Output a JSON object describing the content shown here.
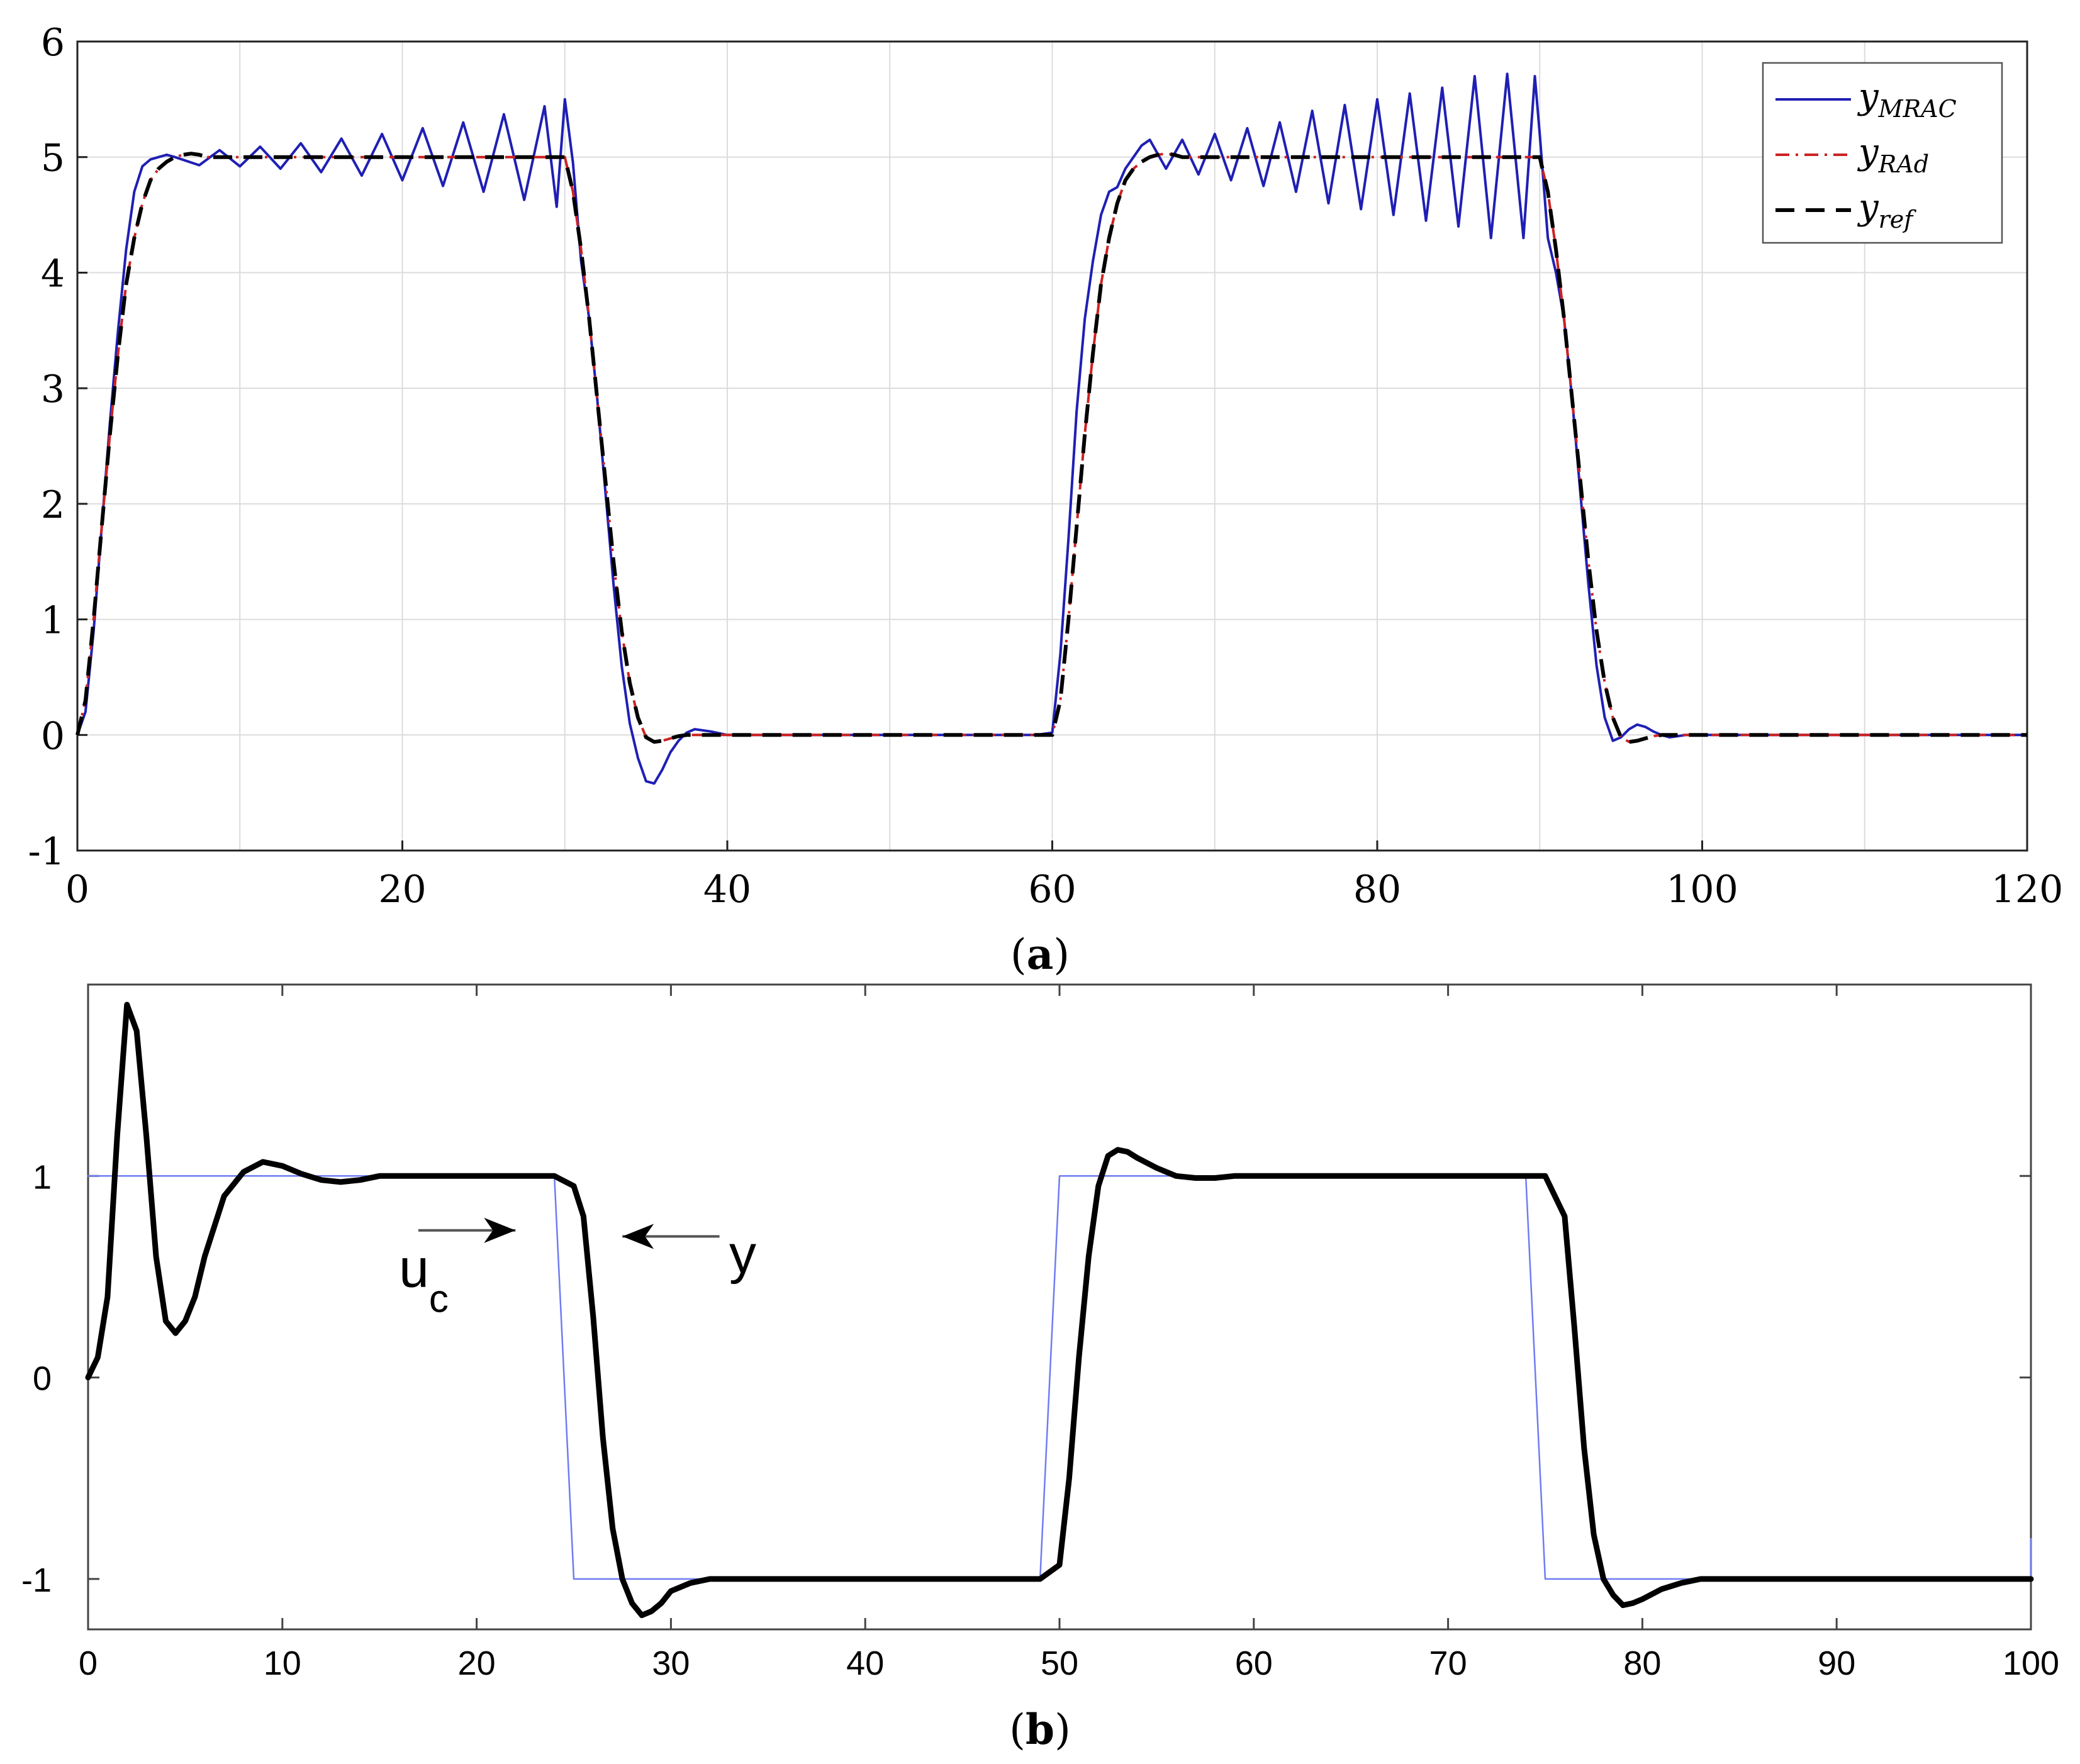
{
  "captions": {
    "a_open": "(",
    "a_letter": "a",
    "a_close": ")",
    "b_open": "(",
    "b_letter": "b",
    "b_close": ")"
  },
  "colors": {
    "mrac": "#1f1fb4",
    "rad": "#cc2222",
    "ref": "#000000",
    "uc": "#6f7cf2",
    "y": "#000000",
    "grid": "#dcdcdc"
  },
  "chart_data": [
    {
      "id": "a",
      "type": "line",
      "xlim": [
        0,
        120
      ],
      "ylim": [
        -1,
        6
      ],
      "x_ticks": [
        "0",
        "20",
        "40",
        "60",
        "80",
        "100",
        "120"
      ],
      "y_ticks": [
        "-1",
        "0",
        "1",
        "2",
        "3",
        "4",
        "5",
        "6"
      ],
      "grid": true,
      "legend_position": "top-right",
      "legend": [
        {
          "base": "y",
          "sub": "MRAC",
          "style": "solid"
        },
        {
          "base": "y",
          "sub": "RAd",
          "style": "dash-dot"
        },
        {
          "base": "y",
          "sub": "ref",
          "style": "dashed"
        }
      ],
      "series": [
        {
          "name": "yMRAC",
          "style": "solid",
          "x": [
            0,
            0.5,
            1,
            1.5,
            2,
            2.5,
            3,
            3.5,
            4,
            4.5,
            5,
            5.5,
            6,
            7.5,
            8.75,
            10,
            11.25,
            12.5,
            13.75,
            15,
            16.25,
            17.5,
            18.75,
            20,
            21.25,
            22.5,
            23.75,
            25,
            26.25,
            27.5,
            28.75,
            29.5,
            30,
            30.5,
            31,
            31.5,
            32,
            32.5,
            33,
            33.5,
            34,
            34.5,
            35,
            35.5,
            36,
            36.5,
            37,
            37.5,
            38,
            39,
            40,
            50,
            59,
            60,
            60.5,
            61,
            61.5,
            62,
            62.5,
            63,
            63.5,
            64,
            64.5,
            65,
            65.5,
            66,
            67,
            68,
            69,
            70,
            71,
            72,
            73,
            74,
            75,
            76,
            77,
            78,
            79,
            80,
            81,
            82,
            83,
            84,
            85,
            86,
            87,
            88,
            89,
            89.7,
            90,
            90.5,
            91,
            91.5,
            92,
            92.5,
            93,
            93.5,
            94,
            94.5,
            95,
            95.5,
            96,
            96.5,
            97,
            97.5,
            98,
            99,
            100,
            110,
            120
          ],
          "y": [
            0,
            0.2,
            0.9,
            1.8,
            2.7,
            3.5,
            4.2,
            4.7,
            4.92,
            4.98,
            5.0,
            5.02,
            5.0,
            4.93,
            5.06,
            4.92,
            5.09,
            4.9,
            5.12,
            4.87,
            5.16,
            4.84,
            5.2,
            4.8,
            5.25,
            4.75,
            5.3,
            4.7,
            5.37,
            4.63,
            5.44,
            4.57,
            5.5,
            4.95,
            4.1,
            3.6,
            2.9,
            2.1,
            1.3,
            0.6,
            0.1,
            -0.2,
            -0.4,
            -0.42,
            -0.3,
            -0.15,
            -0.05,
            0.02,
            0.05,
            0.03,
            0,
            0,
            0,
            0.02,
            0.7,
            1.7,
            2.8,
            3.6,
            4.1,
            4.5,
            4.7,
            4.74,
            4.9,
            5.0,
            5.1,
            5.15,
            4.9,
            5.15,
            4.85,
            5.2,
            4.8,
            5.25,
            4.75,
            5.3,
            4.7,
            5.4,
            4.6,
            5.45,
            4.55,
            5.5,
            4.5,
            5.55,
            4.45,
            5.6,
            4.4,
            5.7,
            4.3,
            5.72,
            4.3,
            5.7,
            5.2,
            4.3,
            4.0,
            3.6,
            2.9,
            2.1,
            1.3,
            0.6,
            0.15,
            -0.05,
            -0.02,
            0.05,
            0.09,
            0.07,
            0.03,
            0.0,
            -0.02,
            0,
            0,
            0,
            0
          ]
        },
        {
          "name": "yRAd",
          "style": "dash-dot",
          "x": [
            0,
            0.5,
            1,
            1.5,
            2,
            2.5,
            3,
            3.5,
            4,
            4.5,
            5,
            5.5,
            6,
            6.5,
            7,
            7.5,
            8,
            30,
            30.5,
            31,
            31.5,
            32,
            32.5,
            33,
            33.5,
            34,
            34.5,
            35,
            35.5,
            36,
            36.5,
            37,
            37.5,
            38,
            39,
            40,
            60,
            60.5,
            61,
            61.5,
            62,
            62.5,
            63,
            63.5,
            64,
            64.5,
            65,
            65.5,
            66,
            66.5,
            67,
            67.5,
            68,
            90,
            90.5,
            91,
            91.5,
            92,
            92.5,
            93,
            93.5,
            94,
            94.5,
            95,
            95.5,
            96,
            96.5,
            97,
            97.5,
            98,
            99,
            100,
            120
          ],
          "y": [
            0,
            0.3,
            1.0,
            1.8,
            2.6,
            3.3,
            3.9,
            4.3,
            4.6,
            4.8,
            4.9,
            4.96,
            5.0,
            5.02,
            5.03,
            5.02,
            5.0,
            5.0,
            4.7,
            4.2,
            3.6,
            2.9,
            2.2,
            1.5,
            0.9,
            0.45,
            0.15,
            -0.02,
            -0.06,
            -0.05,
            -0.03,
            -0.01,
            0,
            0,
            0,
            0,
            0,
            0.3,
            1.0,
            1.8,
            2.6,
            3.3,
            3.9,
            4.3,
            4.6,
            4.8,
            4.9,
            4.96,
            5.0,
            5.02,
            5.03,
            5.02,
            5.0,
            5.0,
            4.7,
            4.2,
            3.6,
            2.9,
            2.2,
            1.5,
            0.9,
            0.45,
            0.15,
            -0.02,
            -0.06,
            -0.05,
            -0.03,
            -0.01,
            0,
            0,
            0,
            0,
            0
          ]
        },
        {
          "name": "yref",
          "style": "dashed",
          "x": [
            0,
            0.5,
            1,
            1.5,
            2,
            2.5,
            3,
            3.5,
            4,
            4.5,
            5,
            5.5,
            6,
            6.5,
            7,
            7.5,
            8,
            30,
            30.5,
            31,
            31.5,
            32,
            32.5,
            33,
            33.5,
            34,
            34.5,
            35,
            35.5,
            36,
            36.5,
            37,
            37.5,
            38,
            39,
            40,
            60,
            60.5,
            61,
            61.5,
            62,
            62.5,
            63,
            63.5,
            64,
            64.5,
            65,
            65.5,
            66,
            66.5,
            67,
            67.5,
            68,
            90,
            90.5,
            91,
            91.5,
            92,
            92.5,
            93,
            93.5,
            94,
            94.5,
            95,
            95.5,
            96,
            96.5,
            97,
            97.5,
            98,
            99,
            100,
            120
          ],
          "y": [
            0,
            0.3,
            1.0,
            1.8,
            2.6,
            3.3,
            3.9,
            4.3,
            4.6,
            4.8,
            4.9,
            4.96,
            5.0,
            5.02,
            5.03,
            5.02,
            5.0,
            5.0,
            4.7,
            4.2,
            3.6,
            2.9,
            2.2,
            1.5,
            0.9,
            0.45,
            0.15,
            -0.02,
            -0.06,
            -0.05,
            -0.03,
            -0.01,
            0,
            0,
            0,
            0,
            0,
            0.3,
            1.0,
            1.8,
            2.6,
            3.3,
            3.9,
            4.3,
            4.6,
            4.8,
            4.9,
            4.96,
            5.0,
            5.02,
            5.03,
            5.02,
            5.0,
            5.0,
            4.7,
            4.2,
            3.6,
            2.9,
            2.2,
            1.5,
            0.9,
            0.45,
            0.15,
            -0.02,
            -0.06,
            -0.05,
            -0.03,
            -0.01,
            0,
            0,
            0,
            0,
            0
          ]
        }
      ]
    },
    {
      "id": "b",
      "type": "line",
      "xlim": [
        0,
        100
      ],
      "ylim": [
        -1.25,
        1.95
      ],
      "x_ticks": [
        "0",
        "10",
        "20",
        "30",
        "40",
        "50",
        "60",
        "70",
        "80",
        "90",
        "100"
      ],
      "y_ticks": [
        "-1",
        "0",
        "1"
      ],
      "y_tick_values": [
        -1,
        0,
        1
      ],
      "grid": false,
      "annotations": [
        {
          "base": "u",
          "sub": "c",
          "x": 16,
          "y": 0.45,
          "arrow_from_x": 17,
          "arrow_to_x": 22,
          "arrow_y": 0.73
        },
        {
          "base": "y",
          "x": 33,
          "y": 0.52,
          "arrow_from_x": 32.5,
          "arrow_to_x": 27.5,
          "arrow_y": 0.7
        }
      ],
      "series": [
        {
          "name": "uc",
          "style": "thin",
          "x": [
            0,
            24,
            25,
            49,
            50,
            74,
            75,
            100,
            100
          ],
          "y": [
            1,
            1,
            -1,
            -1,
            1,
            1,
            -1,
            -1,
            -0.8
          ]
        },
        {
          "name": "y",
          "style": "thick",
          "x": [
            0,
            0.5,
            1,
            1.5,
            2,
            2.5,
            3,
            3.5,
            4,
            4.5,
            5,
            5.5,
            6,
            7,
            8,
            9,
            10,
            11,
            12,
            13,
            14,
            15,
            24,
            25,
            25.5,
            26,
            26.5,
            27,
            27.5,
            28,
            28.5,
            29,
            29.5,
            30,
            31,
            32,
            33,
            34,
            35,
            49,
            50,
            50.5,
            51,
            51.5,
            52,
            52.5,
            53,
            53.5,
            54,
            55,
            56,
            57,
            58,
            59,
            60,
            75,
            76,
            76.5,
            77,
            77.5,
            78,
            78.5,
            79,
            79.5,
            80,
            81,
            82,
            83,
            84,
            100
          ],
          "y": [
            0,
            0.1,
            0.4,
            1.2,
            1.85,
            1.72,
            1.2,
            0.6,
            0.28,
            0.22,
            0.28,
            0.4,
            0.6,
            0.9,
            1.02,
            1.07,
            1.05,
            1.01,
            0.98,
            0.97,
            0.98,
            1.0,
            1.0,
            0.95,
            0.8,
            0.3,
            -0.3,
            -0.75,
            -1.0,
            -1.12,
            -1.18,
            -1.16,
            -1.12,
            -1.06,
            -1.02,
            -1.0,
            -1.0,
            -1.0,
            -1.0,
            -1.0,
            -0.93,
            -0.5,
            0.1,
            0.6,
            0.95,
            1.1,
            1.13,
            1.12,
            1.09,
            1.04,
            1.0,
            0.99,
            0.99,
            1.0,
            1.0,
            1.0,
            0.8,
            0.25,
            -0.35,
            -0.78,
            -1.0,
            -1.08,
            -1.13,
            -1.12,
            -1.1,
            -1.05,
            -1.02,
            -1.0,
            -1.0,
            -1.0
          ]
        }
      ]
    }
  ]
}
